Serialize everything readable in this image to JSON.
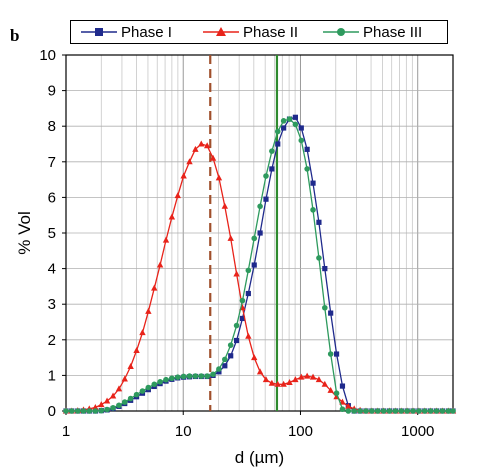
{
  "panel_label": "b",
  "chart_data": {
    "type": "line",
    "title": "",
    "xlabel": "d (µm)",
    "ylabel": "% Vol",
    "xscale": "log",
    "xlim": [
      1,
      2000
    ],
    "ylim": [
      0,
      10
    ],
    "grid": true,
    "legend_position": "top",
    "x_ticks": [
      1,
      10,
      100,
      1000
    ],
    "x_tick_labels": [
      "1",
      "10",
      "100",
      "1000"
    ],
    "y_ticks": [
      0,
      1,
      2,
      3,
      4,
      5,
      6,
      7,
      8,
      9,
      10
    ],
    "y_tick_labels": [
      "0",
      "1",
      "2",
      "3",
      "4",
      "5",
      "6",
      "7",
      "8",
      "9",
      "10"
    ],
    "series": [
      {
        "name": "Phase I",
        "color": "#1f2a8c",
        "marker": "square",
        "x": [
          1,
          1.12,
          1.26,
          1.41,
          1.58,
          1.78,
          2,
          2.24,
          2.52,
          2.83,
          3.17,
          3.56,
          4,
          4.49,
          5.04,
          5.66,
          6.35,
          7.13,
          8,
          8.98,
          10.08,
          11.31,
          12.7,
          14.25,
          16,
          17.96,
          20.16,
          22.63,
          25.4,
          28.51,
          32,
          35.92,
          40.32,
          45.25,
          50.8,
          57.02,
          64,
          71.84,
          80.63,
          90.51,
          101.6,
          114,
          128,
          143.7,
          161.3,
          181,
          203.2,
          228.1,
          256,
          287.4,
          322.5,
          362,
          406.4,
          456.1,
          512,
          574.7,
          645.1,
          724.1,
          812.7,
          912.3,
          1024,
          1149,
          1290,
          1448,
          1625,
          1825,
          2000
        ],
        "y": [
          0,
          0,
          0,
          0,
          0,
          0,
          0.01,
          0.03,
          0.07,
          0.13,
          0.21,
          0.3,
          0.4,
          0.5,
          0.6,
          0.69,
          0.77,
          0.84,
          0.89,
          0.93,
          0.95,
          0.96,
          0.97,
          0.97,
          0.97,
          1.0,
          1.1,
          1.27,
          1.55,
          1.98,
          2.6,
          3.3,
          4.1,
          5.0,
          5.95,
          6.8,
          7.5,
          7.95,
          8.2,
          8.25,
          7.95,
          7.35,
          6.4,
          5.3,
          4.0,
          2.75,
          1.6,
          0.7,
          0.15,
          0,
          0,
          0,
          0,
          0,
          0,
          0,
          0,
          0,
          0,
          0,
          0,
          0,
          0,
          0,
          0,
          0,
          0
        ]
      },
      {
        "name": "Phase II",
        "color": "#e8231a",
        "marker": "triangle",
        "x": [
          1,
          1.12,
          1.26,
          1.41,
          1.58,
          1.78,
          2,
          2.24,
          2.52,
          2.83,
          3.17,
          3.56,
          4,
          4.49,
          5.04,
          5.66,
          6.35,
          7.13,
          8,
          8.98,
          10.08,
          11.31,
          12.7,
          14.25,
          16,
          17.96,
          20.16,
          22.63,
          25.4,
          28.51,
          32,
          35.92,
          40.32,
          45.25,
          50.8,
          57.02,
          64,
          71.84,
          80.63,
          90.51,
          101.6,
          114,
          128,
          143.7,
          161.3,
          181,
          203.2,
          228.1,
          256,
          287.4,
          322.5,
          362,
          406.4,
          456.1,
          512,
          574.7,
          645.1,
          724.1,
          812.7,
          912.3,
          1024,
          1149,
          1290,
          1448,
          1625,
          1825,
          2000
        ],
        "y": [
          0,
          0,
          0.01,
          0.03,
          0.06,
          0.1,
          0.18,
          0.28,
          0.42,
          0.62,
          0.9,
          1.25,
          1.7,
          2.2,
          2.8,
          3.45,
          4.1,
          4.8,
          5.45,
          6.05,
          6.6,
          7.0,
          7.35,
          7.5,
          7.45,
          7.1,
          6.55,
          5.75,
          4.85,
          3.85,
          2.9,
          2.1,
          1.5,
          1.1,
          0.88,
          0.78,
          0.75,
          0.75,
          0.8,
          0.88,
          0.95,
          0.98,
          0.95,
          0.88,
          0.75,
          0.58,
          0.4,
          0.25,
          0.13,
          0.06,
          0.02,
          0,
          0,
          0,
          0,
          0,
          0,
          0,
          0,
          0,
          0,
          0,
          0,
          0,
          0,
          0,
          0
        ]
      },
      {
        "name": "Phase III",
        "color": "#2e9a5e",
        "marker": "circle",
        "x": [
          1,
          1.12,
          1.26,
          1.41,
          1.58,
          1.78,
          2,
          2.24,
          2.52,
          2.83,
          3.17,
          3.56,
          4,
          4.49,
          5.04,
          5.66,
          6.35,
          7.13,
          8,
          8.98,
          10.08,
          11.31,
          12.7,
          14.25,
          16,
          17.96,
          20.16,
          22.63,
          25.4,
          28.51,
          32,
          35.92,
          40.32,
          45.25,
          50.8,
          57.02,
          64,
          71.84,
          80.63,
          90.51,
          101.6,
          114,
          128,
          143.7,
          161.3,
          181,
          203.2,
          228.1,
          256,
          287.4,
          322.5,
          362,
          406.4,
          456.1,
          512,
          574.7,
          645.1,
          724.1,
          812.7,
          912.3,
          1024,
          1149,
          1290,
          1448,
          1625,
          1825,
          2000
        ],
        "y": [
          0,
          0,
          0,
          0,
          0,
          0,
          0.01,
          0.04,
          0.09,
          0.16,
          0.25,
          0.35,
          0.46,
          0.56,
          0.66,
          0.75,
          0.82,
          0.88,
          0.92,
          0.95,
          0.97,
          0.98,
          0.98,
          0.98,
          0.98,
          1.03,
          1.18,
          1.45,
          1.85,
          2.4,
          3.1,
          3.95,
          4.85,
          5.75,
          6.6,
          7.3,
          7.85,
          8.15,
          8.2,
          8.05,
          7.6,
          6.8,
          5.65,
          4.3,
          2.9,
          1.6,
          0.5,
          0.05,
          0,
          0,
          0,
          0,
          0,
          0,
          0,
          0,
          0,
          0,
          0,
          0,
          0,
          0,
          0,
          0,
          0,
          0,
          0
        ]
      }
    ],
    "reference_lines": [
      {
        "x": 17,
        "color": "#a0502c",
        "style": "dashed"
      },
      {
        "x": 63,
        "color": "#2e8a2e",
        "style": "solid"
      }
    ]
  }
}
